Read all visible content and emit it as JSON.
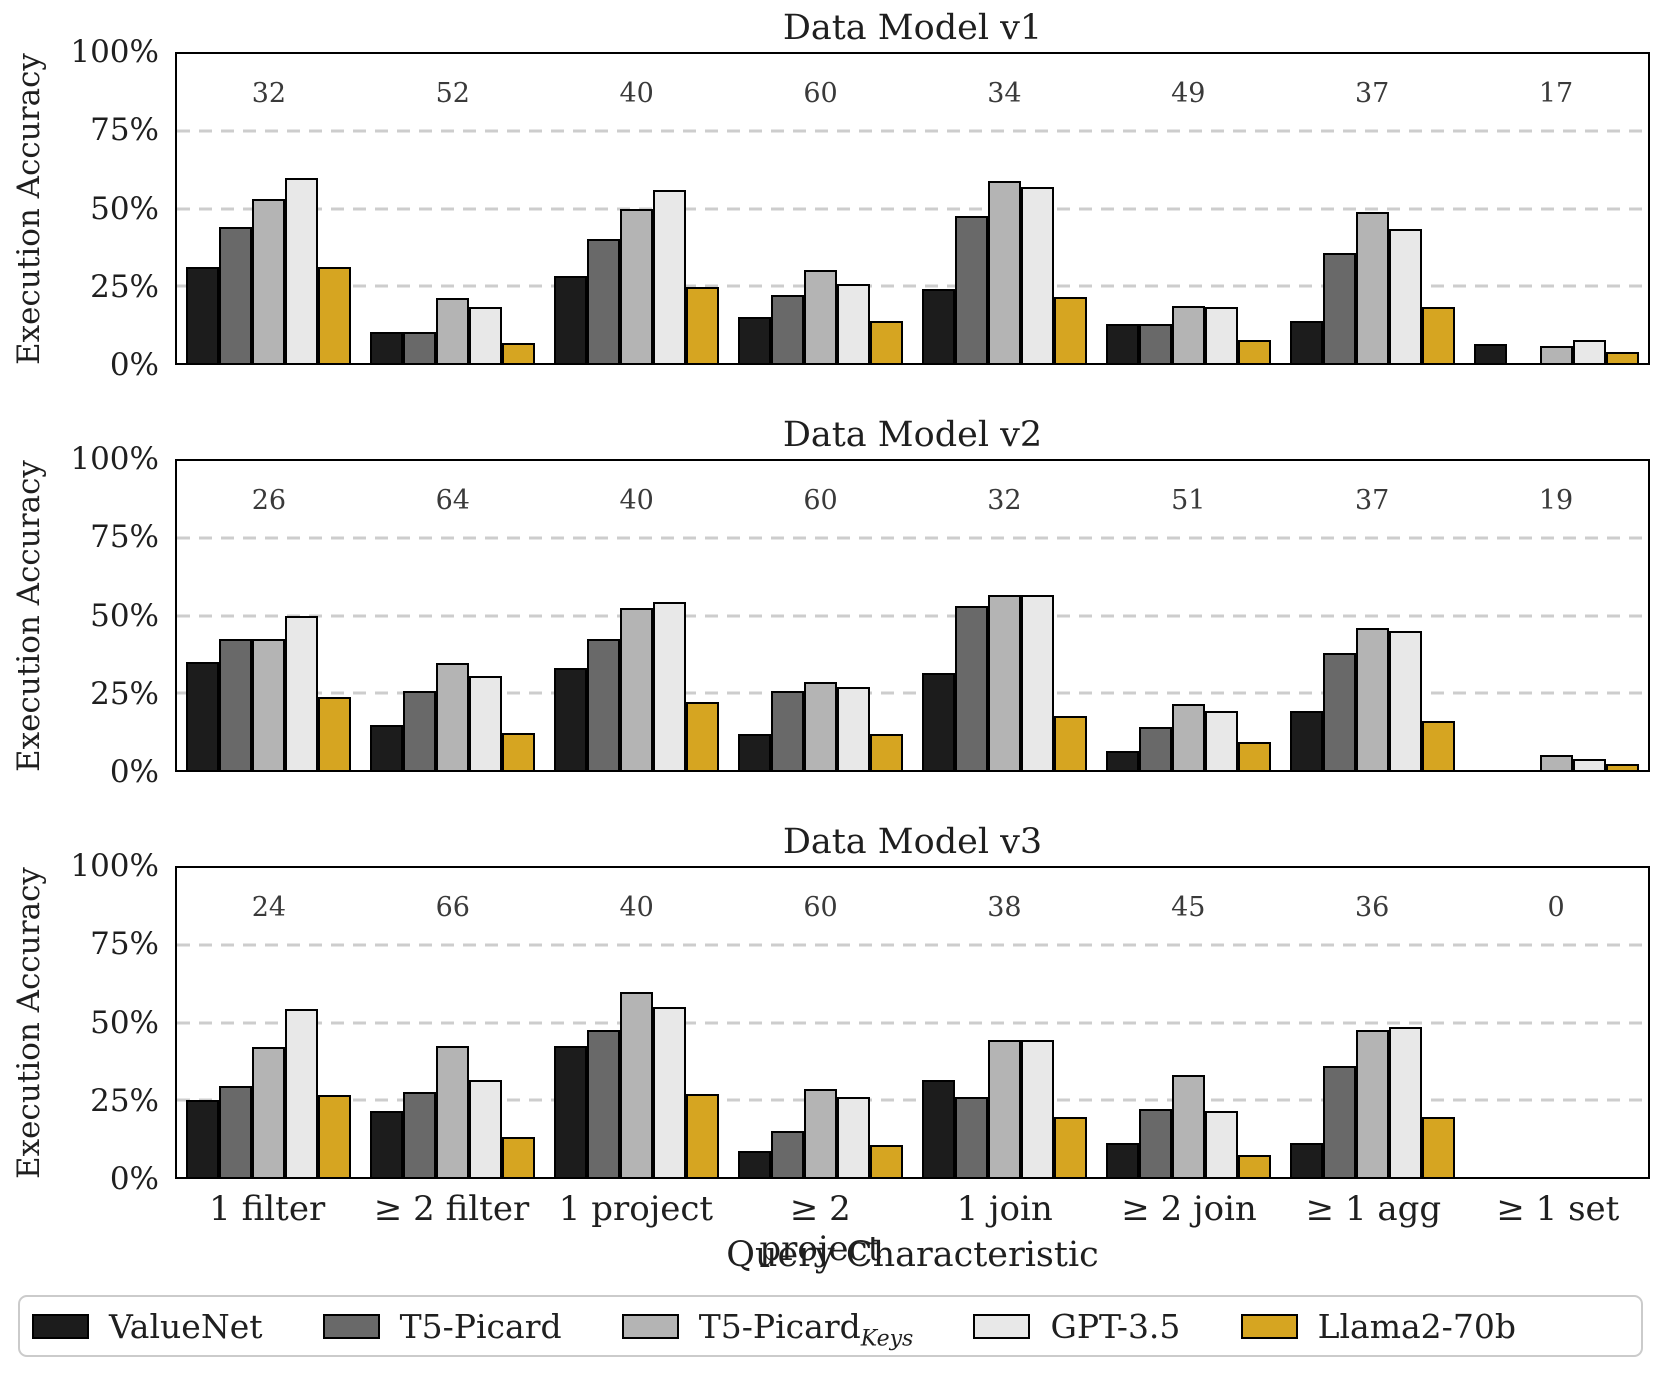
{
  "figure": {
    "y_axis_label": "Execution Accuracy",
    "x_axis_label": "Query Characteristic",
    "y_tick_labels": [
      "100%",
      "75%",
      "50%",
      "25%",
      "0%"
    ],
    "background_color": "#ffffff",
    "gridline_color": "#cdcdcd",
    "bar_edge_color": "#000000"
  },
  "legend": {
    "items": [
      {
        "label": "ValueNet",
        "label_subscript": "",
        "color": "#1c1c1c"
      },
      {
        "label": "T5-Picard",
        "label_subscript": "",
        "color": "#696969"
      },
      {
        "label": "T5-Picard",
        "label_subscript": "Keys",
        "color": "#b4b4b4"
      },
      {
        "label": "GPT-3.5",
        "label_subscript": "",
        "color": "#e8e8e8"
      },
      {
        "label": "Llama2-70b",
        "label_subscript": "",
        "color": "#d6a521"
      }
    ]
  },
  "chart_data": [
    {
      "type": "bar",
      "title": "Data Model v1",
      "xlabel": "Query Characteristic",
      "ylabel": "Execution Accuracy",
      "ylim": [
        0,
        100
      ],
      "yticks_percent": [
        0,
        25,
        50,
        75,
        100
      ],
      "grid": "horizontal dashed at 25/50/75",
      "legend_position": "bottom",
      "categories": [
        "1 filter",
        "≥ 2 filter",
        "1 project",
        "≥ 2 project",
        "1 join",
        "≥ 2 join",
        "≥ 1 agg",
        "≥ 1 set"
      ],
      "group_counts": [
        32,
        52,
        40,
        60,
        34,
        49,
        37,
        17
      ],
      "series": [
        {
          "name": "ValueNet",
          "color": "#1c1c1c",
          "values": [
            31,
            10,
            28,
            15,
            24,
            12.5,
            13.5,
            6
          ]
        },
        {
          "name": "T5-Picard",
          "color": "#696969",
          "values": [
            44,
            10,
            40,
            22,
            47.5,
            12.5,
            35.5,
            0
          ]
        },
        {
          "name": "T5-Picard_Keys",
          "color": "#b4b4b4",
          "values": [
            53,
            21,
            50,
            30,
            59,
            18.5,
            49,
            5.5
          ]
        },
        {
          "name": "GPT-3.5",
          "color": "#e8e8e8",
          "values": [
            60,
            18,
            56,
            25.5,
            57,
            18,
            43.5,
            7.5
          ]
        },
        {
          "name": "Llama2-70b",
          "color": "#d6a521",
          "values": [
            31,
            6.5,
            24.5,
            13.5,
            21.5,
            7.5,
            18,
            3.5
          ]
        }
      ]
    },
    {
      "type": "bar",
      "title": "Data Model v2",
      "xlabel": "Query Characteristic",
      "ylabel": "Execution Accuracy",
      "ylim": [
        0,
        100
      ],
      "yticks_percent": [
        0,
        25,
        50,
        75,
        100
      ],
      "grid": "horizontal dashed at 25/50/75",
      "legend_position": "bottom",
      "categories": [
        "1 filter",
        "≥ 2 filter",
        "1 project",
        "≥ 2 project",
        "1 join",
        "≥ 2 join",
        "≥ 1 agg",
        "≥ 1 set"
      ],
      "group_counts": [
        26,
        64,
        40,
        60,
        32,
        51,
        37,
        19
      ],
      "series": [
        {
          "name": "ValueNet",
          "color": "#1c1c1c",
          "values": [
            35,
            14.5,
            33,
            11.5,
            31.5,
            6,
            19,
            0
          ]
        },
        {
          "name": "T5-Picard",
          "color": "#696969",
          "values": [
            42.5,
            25.5,
            42.5,
            25.5,
            53,
            14,
            38,
            0
          ]
        },
        {
          "name": "T5-Picard_Keys",
          "color": "#b4b4b4",
          "values": [
            42.5,
            34.5,
            52.5,
            28.5,
            56.5,
            21.5,
            46,
            5
          ]
        },
        {
          "name": "GPT-3.5",
          "color": "#e8e8e8",
          "values": [
            50,
            30.5,
            54.5,
            27,
            56.5,
            19,
            45,
            3.5
          ]
        },
        {
          "name": "Llama2-70b",
          "color": "#d6a521",
          "values": [
            23.5,
            12,
            22,
            11.5,
            17.5,
            9,
            16,
            2
          ]
        }
      ]
    },
    {
      "type": "bar",
      "title": "Data Model v3",
      "xlabel": "Query Characteristic",
      "ylabel": "Execution Accuracy",
      "ylim": [
        0,
        100
      ],
      "yticks_percent": [
        0,
        25,
        50,
        75,
        100
      ],
      "grid": "horizontal dashed at 25/50/75",
      "legend_position": "bottom",
      "categories": [
        "1 filter",
        "≥ 2 filter",
        "1 project",
        "≥ 2 project",
        "1 join",
        "≥ 2 join",
        "≥ 1 agg",
        "≥ 1 set"
      ],
      "group_counts": [
        24,
        66,
        40,
        60,
        38,
        45,
        36,
        0
      ],
      "series": [
        {
          "name": "ValueNet",
          "color": "#1c1c1c",
          "values": [
            25,
            21.5,
            42.5,
            8.5,
            31.5,
            11,
            11,
            0
          ]
        },
        {
          "name": "T5-Picard",
          "color": "#696969",
          "values": [
            29.5,
            27.5,
            47.5,
            15,
            26,
            22,
            36,
            0
          ]
        },
        {
          "name": "T5-Picard_Keys",
          "color": "#b4b4b4",
          "values": [
            42,
            42.5,
            60,
            28.5,
            44.5,
            33,
            47.5,
            0
          ]
        },
        {
          "name": "GPT-3.5",
          "color": "#e8e8e8",
          "values": [
            54.5,
            31.5,
            55,
            26,
            44.5,
            21.5,
            48.5,
            0
          ]
        },
        {
          "name": "Llama2-70b",
          "color": "#d6a521",
          "values": [
            26.5,
            13,
            27,
            10.5,
            19.5,
            7,
            19.5,
            0
          ]
        }
      ]
    }
  ]
}
